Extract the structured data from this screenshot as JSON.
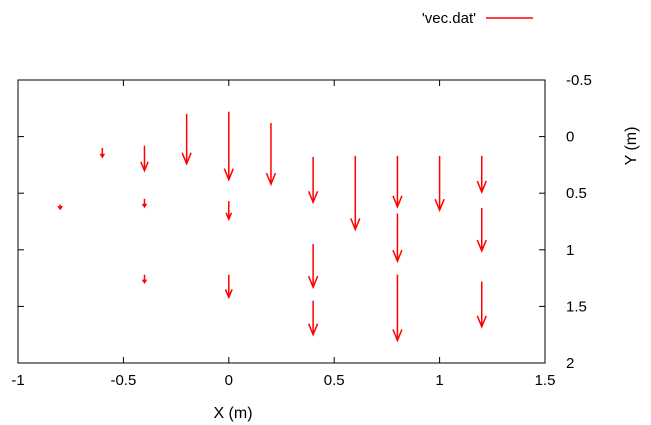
{
  "chart_data": {
    "type": "vector-field",
    "xlabel": "X (m)",
    "ylabel": "Y (m)",
    "xlim": [
      -1,
      1.5
    ],
    "ylim": [
      2,
      -0.5
    ],
    "y_axis_inverted": true,
    "y_axis_side": "right",
    "x_ticks": [
      "-1",
      "-0.5",
      "0",
      "0.5",
      "1",
      "1.5"
    ],
    "y_ticks": [
      "-0.5",
      "0",
      "0.5",
      "1",
      "1.5",
      "2"
    ],
    "x_tick_values": [
      -1,
      -0.5,
      0,
      0.5,
      1,
      1.5
    ],
    "y_tick_values": [
      -0.5,
      0,
      0.5,
      1,
      1.5,
      2
    ],
    "grid": false,
    "legend": {
      "label": "'vec.dat'",
      "position": "top-right",
      "color": "#ff0000"
    },
    "series_color": "#ff0000",
    "vectors": [
      {
        "x": -0.8,
        "y": 0.6,
        "dx": 0,
        "dy": 0.04
      },
      {
        "x": -0.6,
        "y": 0.1,
        "dx": 0,
        "dy": 0.08
      },
      {
        "x": -0.4,
        "y": 0.08,
        "dx": 0,
        "dy": 0.22
      },
      {
        "x": -0.4,
        "y": 0.55,
        "dx": 0,
        "dy": 0.07
      },
      {
        "x": -0.4,
        "y": 1.22,
        "dx": 0,
        "dy": 0.07
      },
      {
        "x": -0.2,
        "y": -0.2,
        "dx": 0,
        "dy": 0.44
      },
      {
        "x": 0,
        "y": -0.22,
        "dx": 0,
        "dy": 0.6
      },
      {
        "x": 0,
        "y": 0.57,
        "dx": 0,
        "dy": 0.16
      },
      {
        "x": 0,
        "y": 1.22,
        "dx": 0,
        "dy": 0.2
      },
      {
        "x": 0.2,
        "y": -0.12,
        "dx": 0,
        "dy": 0.54
      },
      {
        "x": 0.4,
        "y": 0.18,
        "dx": 0,
        "dy": 0.4
      },
      {
        "x": 0.4,
        "y": 0.95,
        "dx": 0,
        "dy": 0.38
      },
      {
        "x": 0.4,
        "y": 1.45,
        "dx": 0,
        "dy": 0.3
      },
      {
        "x": 0.6,
        "y": 0.17,
        "dx": 0,
        "dy": 0.65
      },
      {
        "x": 0.8,
        "y": 0.17,
        "dx": 0,
        "dy": 0.45
      },
      {
        "x": 0.8,
        "y": 0.68,
        "dx": 0,
        "dy": 0.42
      },
      {
        "x": 0.8,
        "y": 1.22,
        "dx": 0,
        "dy": 0.58
      },
      {
        "x": 1.0,
        "y": 0.17,
        "dx": 0,
        "dy": 0.48
      },
      {
        "x": 1.2,
        "y": 0.17,
        "dx": 0,
        "dy": 0.32
      },
      {
        "x": 1.2,
        "y": 0.63,
        "dx": 0,
        "dy": 0.38
      },
      {
        "x": 1.2,
        "y": 1.28,
        "dx": 0,
        "dy": 0.4
      }
    ]
  }
}
